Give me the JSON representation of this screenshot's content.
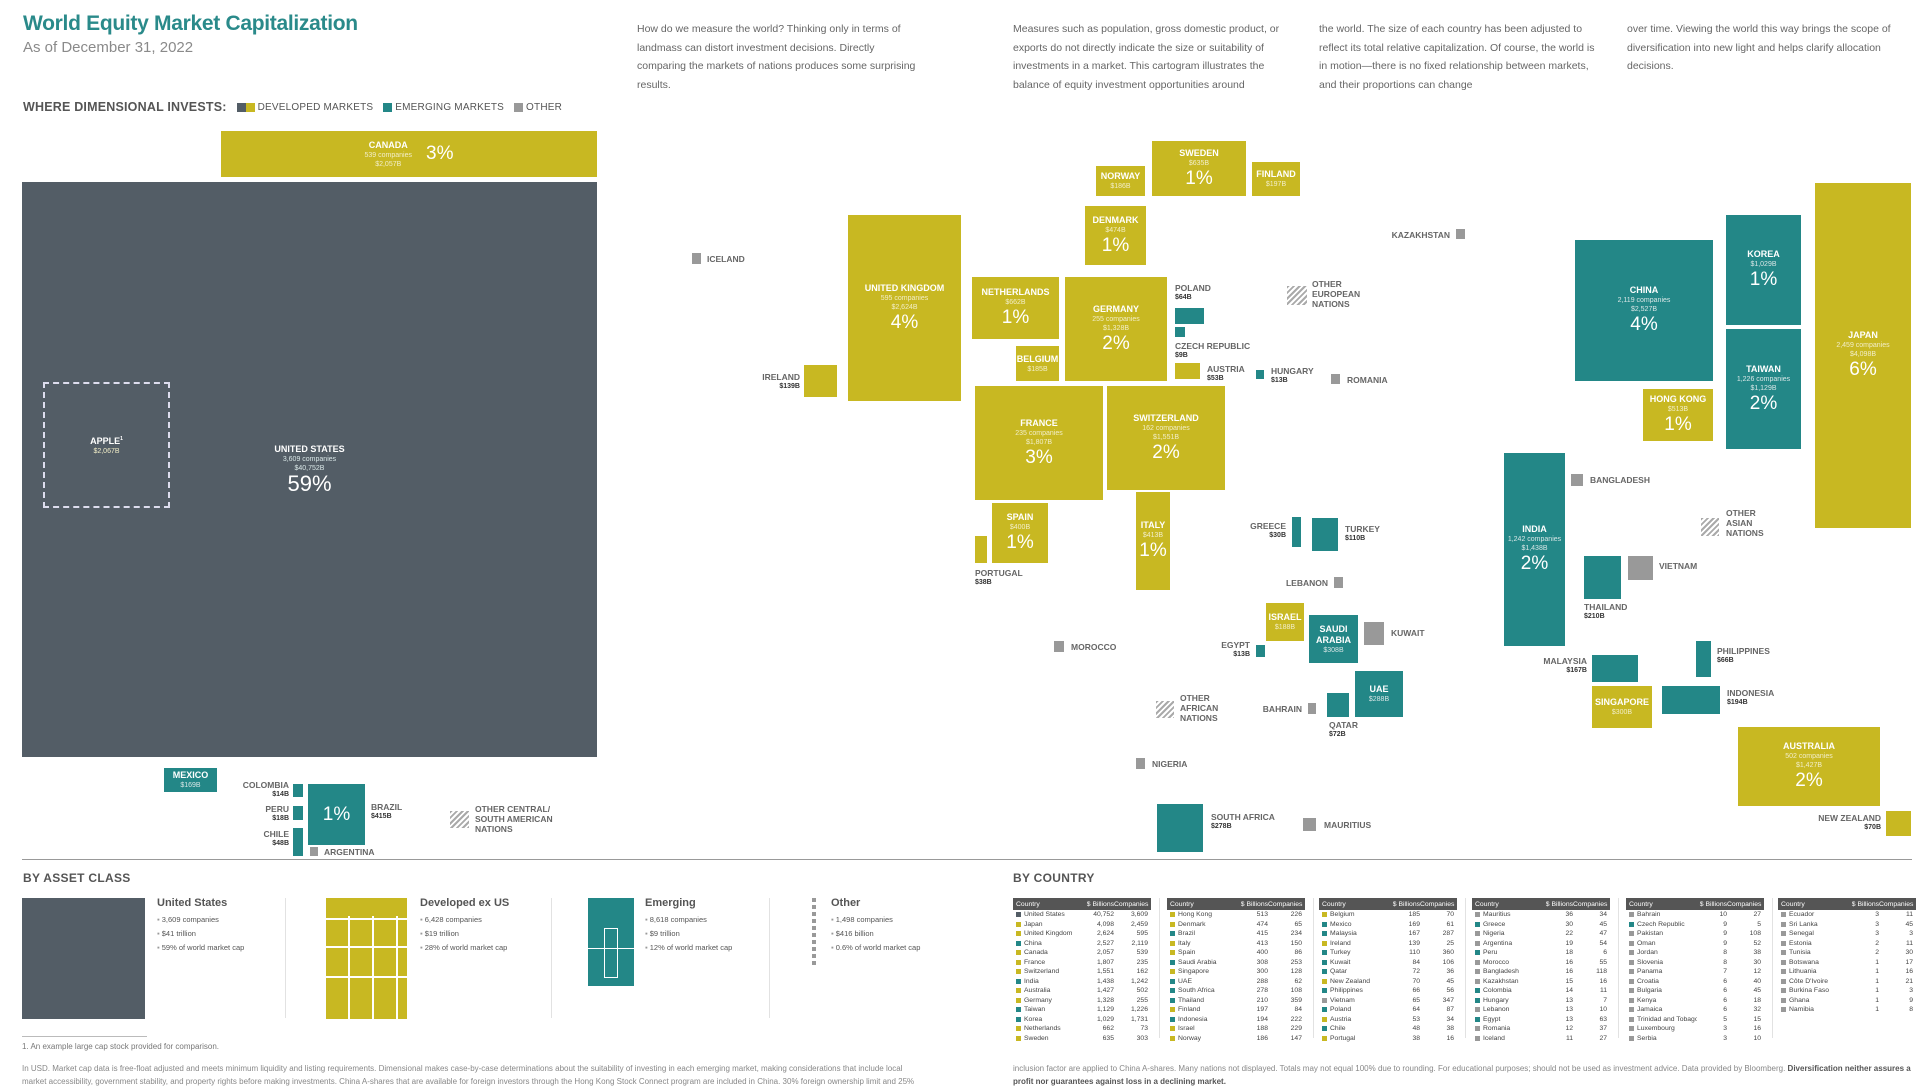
{
  "header": {
    "title": "World Equity Market Capitalization",
    "subtitle": "As of December 31, 2022"
  },
  "intro": [
    "How do we measure the world? Thinking only in terms of landmass can distort investment decisions. Directly comparing the markets of nations produces some surprising results.",
    "Measures such as population, gross domestic product, or exports do not directly indicate the size or suitability of investments in a market. This cartogram illustrates the balance of equity investment opportunities around",
    "the world. The size of each country has been adjusted to reflect its total relative capitalization. Of course, the world is in motion—there is no fixed relationship between markets, and their proportions can change",
    "over time. Viewing the world this way brings the scope of diversification into new light and helps clarify allocation decisions."
  ],
  "legend": {
    "label": "WHERE DIMENSIONAL INVESTS:",
    "developed": "DEVELOPED MARKETS",
    "emerging": "EMERGING MARKETS",
    "other": "OTHER"
  },
  "colors": {
    "us": "#535d66",
    "developed": "#c8b822",
    "emerging": "#238787",
    "other": "#999999",
    "title": "#2a8a8a"
  },
  "map": {
    "apple": {
      "name": "APPLE",
      "sup": "1",
      "cap": "$2,067B"
    },
    "countries": {
      "us": {
        "name": "UNITED STATES",
        "companies": "3,609 companies",
        "cap": "$40,752B",
        "pct": "59%"
      },
      "canada": {
        "name": "CANADA",
        "companies": "539 companies",
        "cap": "$2,057B",
        "pct": "3%"
      },
      "mexico": {
        "name": "MEXICO",
        "cap": "$169B"
      },
      "colombia": {
        "name": "COLOMBIA",
        "cap": "$14B"
      },
      "peru": {
        "name": "PERU",
        "cap": "$18B"
      },
      "chile": {
        "name": "CHILE",
        "cap": "$48B"
      },
      "brazil": {
        "name": "BRAZIL",
        "cap": "$415B",
        "pct": "1%"
      },
      "argentina": {
        "name": "ARGENTINA"
      },
      "other_csa": {
        "name": "OTHER CENTRAL/\nSOUTH AMERICAN\nNATIONS"
      },
      "iceland": {
        "name": "ICELAND"
      },
      "ireland": {
        "name": "IRELAND",
        "cap": "$139B"
      },
      "uk": {
        "name": "UNITED KINGDOM",
        "companies": "595 companies",
        "cap": "$2,624B",
        "pct": "4%"
      },
      "norway": {
        "name": "NORWAY",
        "cap": "$186B"
      },
      "sweden": {
        "name": "SWEDEN",
        "cap": "$635B",
        "pct": "1%"
      },
      "finland": {
        "name": "FINLAND",
        "cap": "$197B"
      },
      "denmark": {
        "name": "DENMARK",
        "cap": "$474B",
        "pct": "1%"
      },
      "netherlands": {
        "name": "NETHERLANDS",
        "cap": "$662B",
        "pct": "1%"
      },
      "germany": {
        "name": "GERMANY",
        "companies": "255 companies",
        "cap": "$1,328B",
        "pct": "2%"
      },
      "belgium": {
        "name": "BELGIUM",
        "cap": "$185B"
      },
      "poland": {
        "name": "POLAND",
        "cap": "$64B"
      },
      "czech": {
        "name": "CZECH REPUBLIC",
        "cap": "$9B"
      },
      "austria": {
        "name": "AUSTRIA",
        "cap": "$53B"
      },
      "hungary": {
        "name": "HUNGARY",
        "cap": "$13B"
      },
      "romania": {
        "name": "ROMANIA"
      },
      "other_europe": {
        "name": "OTHER\nEUROPEAN\nNATIONS"
      },
      "kazakhstan": {
        "name": "KAZAKHSTAN"
      },
      "france": {
        "name": "FRANCE",
        "companies": "235 companies",
        "cap": "$1,807B",
        "pct": "3%"
      },
      "switzerland": {
        "name": "SWITZERLAND",
        "companies": "162 companies",
        "cap": "$1,551B",
        "pct": "2%"
      },
      "spain": {
        "name": "SPAIN",
        "cap": "$400B",
        "pct": "1%"
      },
      "portugal": {
        "name": "PORTUGAL",
        "cap": "$38B"
      },
      "italy": {
        "name": "ITALY",
        "cap": "$413B",
        "pct": "1%"
      },
      "greece": {
        "name": "GREECE",
        "cap": "$30B"
      },
      "turkey": {
        "name": "TURKEY",
        "cap": "$110B"
      },
      "lebanon": {
        "name": "LEBANON"
      },
      "israel": {
        "name": "ISRAEL",
        "cap": "$188B"
      },
      "saudi": {
        "name": "SAUDI\nARABIA",
        "cap": "$308B"
      },
      "kuwait": {
        "name": "KUWAIT"
      },
      "egypt": {
        "name": "EGYPT",
        "cap": "$13B"
      },
      "morocco": {
        "name": "MOROCCO"
      },
      "other_africa": {
        "name": "OTHER\nAFRICAN\nNATIONS"
      },
      "bahrain": {
        "name": "BAHRAIN"
      },
      "qatar": {
        "name": "QATAR",
        "cap": "$72B"
      },
      "uae": {
        "name": "UAE",
        "cap": "$288B"
      },
      "nigeria": {
        "name": "NIGERIA"
      },
      "south_africa": {
        "name": "SOUTH AFRICA",
        "cap": "$278B"
      },
      "mauritius": {
        "name": "MAURITIUS"
      },
      "china": {
        "name": "CHINA",
        "companies": "2,119 companies",
        "cap": "$2,527B",
        "pct": "4%"
      },
      "korea": {
        "name": "KOREA",
        "cap": "$1,029B",
        "pct": "1%"
      },
      "taiwan": {
        "name": "TAIWAN",
        "companies": "1,226 companies",
        "cap": "$1,129B",
        "pct": "2%"
      },
      "japan": {
        "name": "JAPAN",
        "companies": "2,459 companies",
        "cap": "$4,098B",
        "pct": "6%"
      },
      "hongkong": {
        "name": "HONG KONG",
        "cap": "$513B",
        "pct": "1%"
      },
      "india": {
        "name": "INDIA",
        "companies": "1,242 companies",
        "cap": "$1,438B",
        "pct": "2%"
      },
      "bangladesh": {
        "name": "BANGLADESH"
      },
      "other_asia": {
        "name": "OTHER\nASIAN\nNATIONS"
      },
      "thailand": {
        "name": "THAILAND",
        "cap": "$210B"
      },
      "vietnam": {
        "name": "VIETNAM"
      },
      "malaysia": {
        "name": "MALAYSIA",
        "cap": "$167B"
      },
      "philippines": {
        "name": "PHILIPPINES",
        "cap": "$66B"
      },
      "singapore": {
        "name": "SINGAPORE",
        "cap": "$300B"
      },
      "indonesia": {
        "name": "INDONESIA",
        "cap": "$194B"
      },
      "australia": {
        "name": "AUSTRALIA",
        "companies": "502 companies",
        "cap": "$1,427B",
        "pct": "2%"
      },
      "newzealand": {
        "name": "NEW ZEALAND",
        "cap": "$70B"
      }
    }
  },
  "asset_class": {
    "title": "BY ASSET CLASS",
    "items": [
      {
        "name": "United States",
        "bullets": [
          "3,609 companies",
          "$41 trillion",
          "59% of world market cap"
        ]
      },
      {
        "name": "Developed ex US",
        "bullets": [
          "6,428 companies",
          "$19 trillion",
          "28% of world market cap"
        ]
      },
      {
        "name": "Emerging",
        "bullets": [
          "8,618 companies",
          "$9 trillion",
          "12% of world market cap"
        ]
      },
      {
        "name": "Other",
        "bullets": [
          "1,498 companies",
          "$416 billion",
          "0.6% of world market cap"
        ]
      }
    ]
  },
  "by_country": {
    "title": "BY COUNTRY",
    "headers": [
      "Country",
      "$ Billions",
      "Companies"
    ],
    "tables": [
      [
        [
          "United States",
          "40,752",
          "3,609",
          "dk"
        ],
        [
          "Japan",
          "4,098",
          "2,459",
          "d"
        ],
        [
          "United Kingdom",
          "2,624",
          "595",
          "d"
        ],
        [
          "China",
          "2,527",
          "2,119",
          "e"
        ],
        [
          "Canada",
          "2,057",
          "539",
          "d"
        ],
        [
          "France",
          "1,807",
          "235",
          "d"
        ],
        [
          "Switzerland",
          "1,551",
          "162",
          "d"
        ],
        [
          "India",
          "1,438",
          "1,242",
          "e"
        ],
        [
          "Australia",
          "1,427",
          "502",
          "d"
        ],
        [
          "Germany",
          "1,328",
          "255",
          "d"
        ],
        [
          "Taiwan",
          "1,129",
          "1,226",
          "e"
        ],
        [
          "Korea",
          "1,029",
          "1,731",
          "e"
        ],
        [
          "Netherlands",
          "662",
          "73",
          "d"
        ],
        [
          "Sweden",
          "635",
          "303",
          "d"
        ]
      ],
      [
        [
          "Hong Kong",
          "513",
          "226",
          "d"
        ],
        [
          "Denmark",
          "474",
          "65",
          "d"
        ],
        [
          "Brazil",
          "415",
          "234",
          "e"
        ],
        [
          "Italy",
          "413",
          "150",
          "d"
        ],
        [
          "Spain",
          "400",
          "86",
          "d"
        ],
        [
          "Saudi Arabia",
          "308",
          "253",
          "e"
        ],
        [
          "Singapore",
          "300",
          "128",
          "d"
        ],
        [
          "UAE",
          "288",
          "62",
          "e"
        ],
        [
          "South Africa",
          "278",
          "108",
          "e"
        ],
        [
          "Thailand",
          "210",
          "359",
          "e"
        ],
        [
          "Finland",
          "197",
          "84",
          "d"
        ],
        [
          "Indonesia",
          "194",
          "222",
          "e"
        ],
        [
          "Israel",
          "188",
          "229",
          "d"
        ],
        [
          "Norway",
          "186",
          "147",
          "d"
        ]
      ],
      [
        [
          "Belgium",
          "185",
          "70",
          "d"
        ],
        [
          "Mexico",
          "169",
          "61",
          "e"
        ],
        [
          "Malaysia",
          "167",
          "287",
          "e"
        ],
        [
          "Ireland",
          "139",
          "25",
          "d"
        ],
        [
          "Turkey",
          "110",
          "360",
          "e"
        ],
        [
          "Kuwait",
          "84",
          "106",
          "e"
        ],
        [
          "Qatar",
          "72",
          "36",
          "e"
        ],
        [
          "New Zealand",
          "70",
          "45",
          "d"
        ],
        [
          "Philippines",
          "66",
          "56",
          "e"
        ],
        [
          "Vietnam",
          "65",
          "347",
          "o"
        ],
        [
          "Poland",
          "64",
          "87",
          "e"
        ],
        [
          "Austria",
          "53",
          "34",
          "d"
        ],
        [
          "Chile",
          "48",
          "38",
          "e"
        ],
        [
          "Portugal",
          "38",
          "16",
          "d"
        ]
      ],
      [
        [
          "Mauritius",
          "36",
          "34",
          "o"
        ],
        [
          "Greece",
          "30",
          "45",
          "e"
        ],
        [
          "Nigeria",
          "22",
          "47",
          "o"
        ],
        [
          "Argentina",
          "19",
          "54",
          "o"
        ],
        [
          "Peru",
          "18",
          "6",
          "e"
        ],
        [
          "Morocco",
          "16",
          "55",
          "o"
        ],
        [
          "Bangladesh",
          "16",
          "118",
          "o"
        ],
        [
          "Kazakhstan",
          "15",
          "16",
          "o"
        ],
        [
          "Colombia",
          "14",
          "11",
          "e"
        ],
        [
          "Hungary",
          "13",
          "7",
          "e"
        ],
        [
          "Lebanon",
          "13",
          "10",
          "o"
        ],
        [
          "Egypt",
          "13",
          "63",
          "e"
        ],
        [
          "Romania",
          "12",
          "37",
          "o"
        ],
        [
          "Iceland",
          "11",
          "27",
          "o"
        ]
      ],
      [
        [
          "Bahrain",
          "10",
          "27",
          "o"
        ],
        [
          "Czech Republic",
          "9",
          "5",
          "e"
        ],
        [
          "Pakistan",
          "9",
          "108",
          "o"
        ],
        [
          "Oman",
          "9",
          "52",
          "o"
        ],
        [
          "Jordan",
          "8",
          "38",
          "o"
        ],
        [
          "Slovenia",
          "8",
          "30",
          "o"
        ],
        [
          "Panama",
          "7",
          "12",
          "o"
        ],
        [
          "Croatia",
          "6",
          "40",
          "o"
        ],
        [
          "Bulgaria",
          "6",
          "45",
          "o"
        ],
        [
          "Kenya",
          "6",
          "18",
          "o"
        ],
        [
          "Jamaica",
          "6",
          "32",
          "o"
        ],
        [
          "Trinidad and Tobago",
          "5",
          "15",
          "o"
        ],
        [
          "Luxembourg",
          "3",
          "16",
          "o"
        ],
        [
          "Serbia",
          "3",
          "10",
          "o"
        ]
      ],
      [
        [
          "Ecuador",
          "3",
          "11",
          "o"
        ],
        [
          "Sri Lanka",
          "3",
          "45",
          "o"
        ],
        [
          "Senegal",
          "3",
          "3",
          "o"
        ],
        [
          "Estonia",
          "2",
          "11",
          "o"
        ],
        [
          "Tunisia",
          "2",
          "30",
          "o"
        ],
        [
          "Botswana",
          "1",
          "17",
          "o"
        ],
        [
          "Lithuania",
          "1",
          "16",
          "o"
        ],
        [
          "Côte D'Ivoire",
          "1",
          "21",
          "o"
        ],
        [
          "Burkina Faso",
          "1",
          "3",
          "o"
        ],
        [
          "Ghana",
          "1",
          "9",
          "o"
        ],
        [
          "Namibia",
          "1",
          "8",
          "o"
        ]
      ]
    ]
  },
  "footnote": "1.   An example large cap stock provided for comparison.",
  "disclaimer": {
    "left": "In USD. Market cap data is free-float adjusted and meets minimum liquidity and listing requirements. Dimensional makes case-by-case determinations about the suitability of investing in each emerging market, making considerations that include local market accessibility, government stability, and property rights before making investments. China A-shares that are available for foreign investors through the Hong Kong Stock Connect program are included in China. 30% foreign ownership limit and 25%",
    "right": "inclusion factor are applied to China A-shares. Many nations not displayed. Totals may not equal 100% due to rounding. For educational purposes; should not be used as investment advice. Data provided by Bloomberg. ",
    "bold": "Diversification neither assures a profit nor guarantees against loss in a declining market."
  }
}
